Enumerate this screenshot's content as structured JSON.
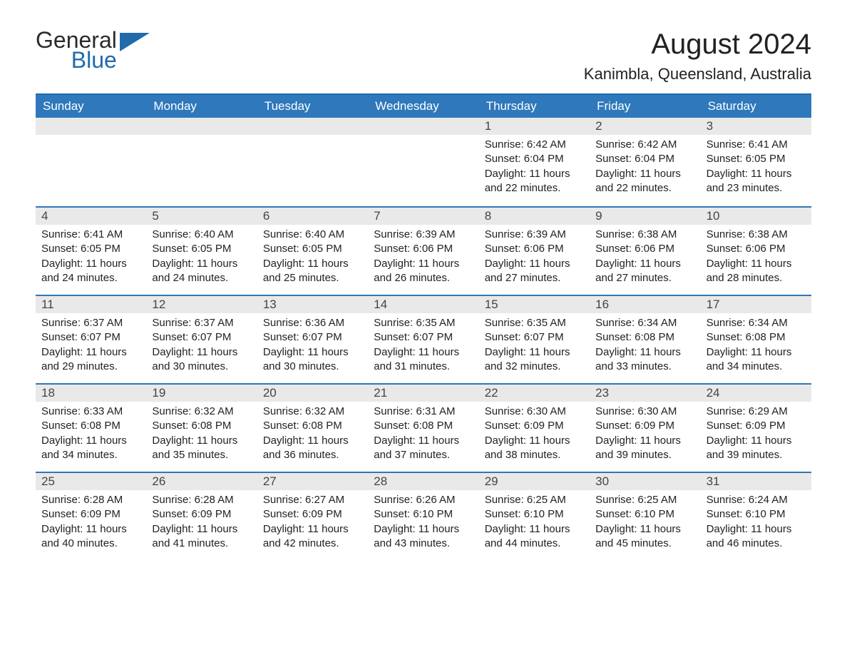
{
  "logo": {
    "word1": "General",
    "word2": "Blue",
    "icon_color": "#1f6bac"
  },
  "title": "August 2024",
  "location": "Kanimbla, Queensland, Australia",
  "colors": {
    "header_bg": "#2e78bb",
    "header_text": "#ffffff",
    "rule": "#2e78bb",
    "daynum_bg": "#e9e9e9",
    "text": "#222222",
    "logo_blue": "#1f6bac",
    "page_bg": "#ffffff"
  },
  "day_names": [
    "Sunday",
    "Monday",
    "Tuesday",
    "Wednesday",
    "Thursday",
    "Friday",
    "Saturday"
  ],
  "weeks": [
    [
      null,
      null,
      null,
      null,
      {
        "n": "1",
        "sunrise": "6:42 AM",
        "sunset": "6:04 PM",
        "daylight": "11 hours and 22 minutes."
      },
      {
        "n": "2",
        "sunrise": "6:42 AM",
        "sunset": "6:04 PM",
        "daylight": "11 hours and 22 minutes."
      },
      {
        "n": "3",
        "sunrise": "6:41 AM",
        "sunset": "6:05 PM",
        "daylight": "11 hours and 23 minutes."
      }
    ],
    [
      {
        "n": "4",
        "sunrise": "6:41 AM",
        "sunset": "6:05 PM",
        "daylight": "11 hours and 24 minutes."
      },
      {
        "n": "5",
        "sunrise": "6:40 AM",
        "sunset": "6:05 PM",
        "daylight": "11 hours and 24 minutes."
      },
      {
        "n": "6",
        "sunrise": "6:40 AM",
        "sunset": "6:05 PM",
        "daylight": "11 hours and 25 minutes."
      },
      {
        "n": "7",
        "sunrise": "6:39 AM",
        "sunset": "6:06 PM",
        "daylight": "11 hours and 26 minutes."
      },
      {
        "n": "8",
        "sunrise": "6:39 AM",
        "sunset": "6:06 PM",
        "daylight": "11 hours and 27 minutes."
      },
      {
        "n": "9",
        "sunrise": "6:38 AM",
        "sunset": "6:06 PM",
        "daylight": "11 hours and 27 minutes."
      },
      {
        "n": "10",
        "sunrise": "6:38 AM",
        "sunset": "6:06 PM",
        "daylight": "11 hours and 28 minutes."
      }
    ],
    [
      {
        "n": "11",
        "sunrise": "6:37 AM",
        "sunset": "6:07 PM",
        "daylight": "11 hours and 29 minutes."
      },
      {
        "n": "12",
        "sunrise": "6:37 AM",
        "sunset": "6:07 PM",
        "daylight": "11 hours and 30 minutes."
      },
      {
        "n": "13",
        "sunrise": "6:36 AM",
        "sunset": "6:07 PM",
        "daylight": "11 hours and 30 minutes."
      },
      {
        "n": "14",
        "sunrise": "6:35 AM",
        "sunset": "6:07 PM",
        "daylight": "11 hours and 31 minutes."
      },
      {
        "n": "15",
        "sunrise": "6:35 AM",
        "sunset": "6:07 PM",
        "daylight": "11 hours and 32 minutes."
      },
      {
        "n": "16",
        "sunrise": "6:34 AM",
        "sunset": "6:08 PM",
        "daylight": "11 hours and 33 minutes."
      },
      {
        "n": "17",
        "sunrise": "6:34 AM",
        "sunset": "6:08 PM",
        "daylight": "11 hours and 34 minutes."
      }
    ],
    [
      {
        "n": "18",
        "sunrise": "6:33 AM",
        "sunset": "6:08 PM",
        "daylight": "11 hours and 34 minutes."
      },
      {
        "n": "19",
        "sunrise": "6:32 AM",
        "sunset": "6:08 PM",
        "daylight": "11 hours and 35 minutes."
      },
      {
        "n": "20",
        "sunrise": "6:32 AM",
        "sunset": "6:08 PM",
        "daylight": "11 hours and 36 minutes."
      },
      {
        "n": "21",
        "sunrise": "6:31 AM",
        "sunset": "6:08 PM",
        "daylight": "11 hours and 37 minutes."
      },
      {
        "n": "22",
        "sunrise": "6:30 AM",
        "sunset": "6:09 PM",
        "daylight": "11 hours and 38 minutes."
      },
      {
        "n": "23",
        "sunrise": "6:30 AM",
        "sunset": "6:09 PM",
        "daylight": "11 hours and 39 minutes."
      },
      {
        "n": "24",
        "sunrise": "6:29 AM",
        "sunset": "6:09 PM",
        "daylight": "11 hours and 39 minutes."
      }
    ],
    [
      {
        "n": "25",
        "sunrise": "6:28 AM",
        "sunset": "6:09 PM",
        "daylight": "11 hours and 40 minutes."
      },
      {
        "n": "26",
        "sunrise": "6:28 AM",
        "sunset": "6:09 PM",
        "daylight": "11 hours and 41 minutes."
      },
      {
        "n": "27",
        "sunrise": "6:27 AM",
        "sunset": "6:09 PM",
        "daylight": "11 hours and 42 minutes."
      },
      {
        "n": "28",
        "sunrise": "6:26 AM",
        "sunset": "6:10 PM",
        "daylight": "11 hours and 43 minutes."
      },
      {
        "n": "29",
        "sunrise": "6:25 AM",
        "sunset": "6:10 PM",
        "daylight": "11 hours and 44 minutes."
      },
      {
        "n": "30",
        "sunrise": "6:25 AM",
        "sunset": "6:10 PM",
        "daylight": "11 hours and 45 minutes."
      },
      {
        "n": "31",
        "sunrise": "6:24 AM",
        "sunset": "6:10 PM",
        "daylight": "11 hours and 46 minutes."
      }
    ]
  ],
  "labels": {
    "sunrise": "Sunrise:",
    "sunset": "Sunset:",
    "daylight": "Daylight:"
  }
}
